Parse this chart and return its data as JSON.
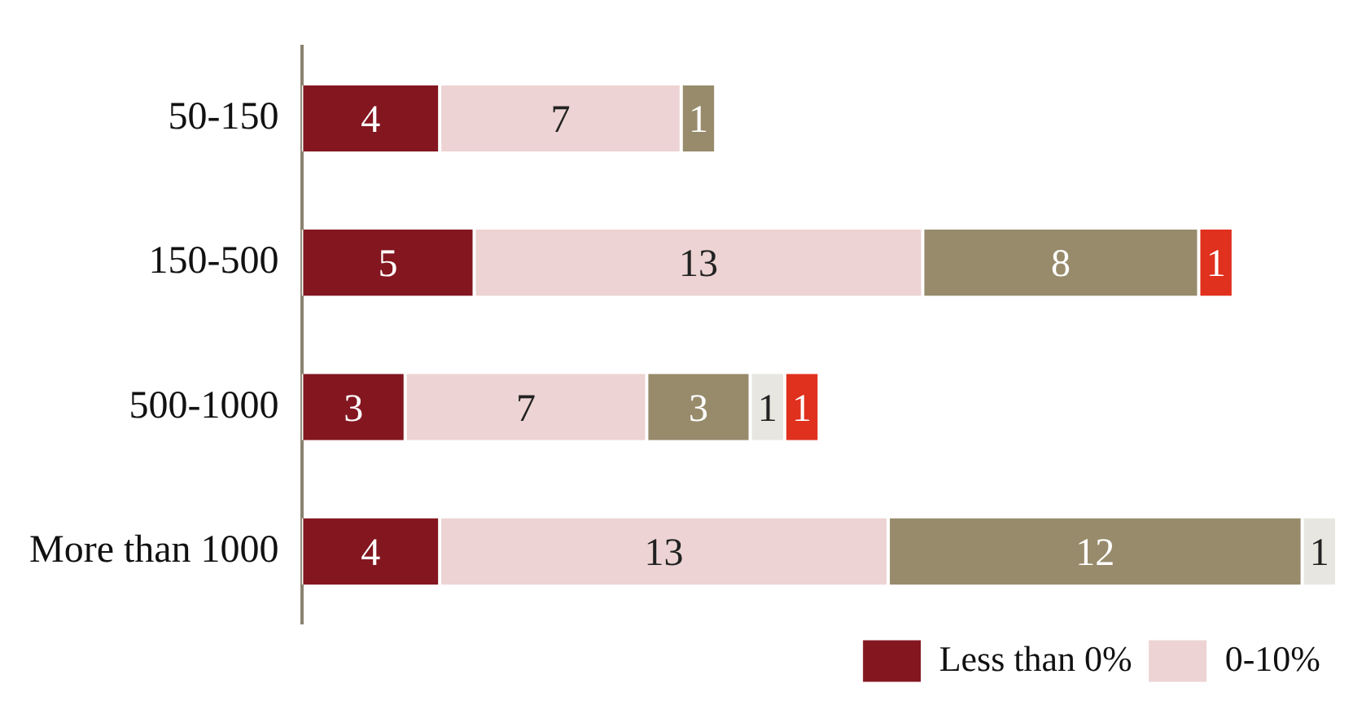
{
  "chart_data": {
    "type": "bar",
    "orientation": "horizontal",
    "stacked": true,
    "data_labels": true,
    "legend": "bottom right",
    "grid": false,
    "categories": [
      "50-150",
      "150-500",
      "500-1000",
      "More than 1000"
    ],
    "series": [
      {
        "name": "Less than 0%",
        "color": "#83161f",
        "values": [
          4,
          5,
          3,
          4
        ]
      },
      {
        "name": "0-10%",
        "color": "#edd3d3",
        "values": [
          7,
          13,
          7,
          13
        ]
      },
      {
        "color": "#978b6b",
        "values": [
          1,
          8,
          3,
          12
        ]
      },
      {
        "color": "#e8e6e1",
        "values": [
          null,
          null,
          1,
          1
        ]
      },
      {
        "color": "#e0301e",
        "values": [
          null,
          1,
          1,
          null
        ]
      }
    ]
  }
}
